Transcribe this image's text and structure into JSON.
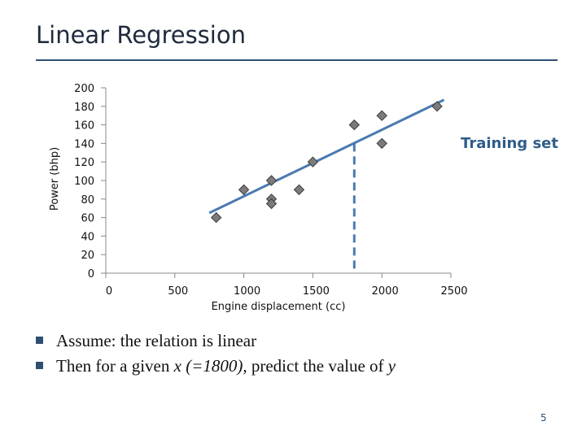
{
  "slide": {
    "title": "Linear Regression",
    "page_number": "5",
    "bullets": [
      [
        {
          "text": "Assume: the relation is linear",
          "italic": false
        }
      ],
      [
        {
          "text": "Then for a given ",
          "italic": false
        },
        {
          "text": "x (=1800),",
          "italic": true
        },
        {
          "text": " predict the value of ",
          "italic": false
        },
        {
          "text": "y",
          "italic": true
        }
      ]
    ]
  },
  "colors": {
    "title_rule": "#2e4f72",
    "marker_fill": "#7b7b7b",
    "marker_stroke": "#3c3c3c",
    "regression_line": "#4a7ab0",
    "prediction_line": "#4a7ab0",
    "legend_text": "#2f5d8a"
  },
  "chart_data": {
    "type": "scatter",
    "title": "",
    "xlabel": "Engine displacement (cc)",
    "ylabel": "Power (bhp)",
    "xlim": [
      0,
      2500
    ],
    "ylim": [
      0,
      200
    ],
    "xticks": [
      "0",
      "500",
      "1000",
      "1500",
      "2000",
      "2500"
    ],
    "yticks": [
      "0",
      "20",
      "40",
      "60",
      "80",
      "100",
      "120",
      "140",
      "160",
      "180",
      "200"
    ],
    "legend": "Training set",
    "legend_position": "right",
    "series": [
      {
        "name": "Training set",
        "points": [
          {
            "x": 800,
            "y": 60
          },
          {
            "x": 1000,
            "y": 90
          },
          {
            "x": 1200,
            "y": 80
          },
          {
            "x": 1200,
            "y": 100
          },
          {
            "x": 1200,
            "y": 75
          },
          {
            "x": 1400,
            "y": 90
          },
          {
            "x": 1500,
            "y": 120
          },
          {
            "x": 1800,
            "y": 160
          },
          {
            "x": 2000,
            "y": 140
          },
          {
            "x": 2000,
            "y": 170
          },
          {
            "x": 2400,
            "y": 180
          }
        ]
      }
    ],
    "regression_line": {
      "x": [
        750,
        2450
      ],
      "y": [
        65,
        187
      ]
    },
    "prediction": {
      "x": 1800,
      "y": 140
    }
  }
}
